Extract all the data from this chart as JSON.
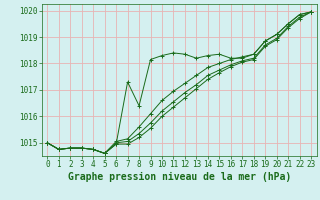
{
  "x": [
    0,
    1,
    2,
    3,
    4,
    5,
    6,
    7,
    8,
    9,
    10,
    11,
    12,
    13,
    14,
    15,
    16,
    17,
    18,
    19,
    20,
    21,
    22,
    23
  ],
  "line1": [
    1015.0,
    1014.75,
    1014.8,
    1014.8,
    1014.75,
    1014.6,
    1014.95,
    1017.3,
    1016.4,
    1018.15,
    1018.3,
    1018.4,
    1018.35,
    1018.2,
    1018.3,
    1018.35,
    1018.2,
    1018.2,
    1018.35,
    1018.85,
    1019.1,
    1019.5,
    1019.85,
    1019.95
  ],
  "line2": [
    1015.0,
    1014.75,
    1014.8,
    1014.8,
    1014.75,
    1014.6,
    1015.05,
    1015.15,
    1015.6,
    1016.1,
    1016.6,
    1016.95,
    1017.25,
    1017.55,
    1017.85,
    1018.0,
    1018.15,
    1018.25,
    1018.35,
    1018.85,
    1019.1,
    1019.5,
    1019.85,
    1019.95
  ],
  "line3": [
    1015.0,
    1014.75,
    1014.8,
    1014.8,
    1014.75,
    1014.6,
    1015.0,
    1015.05,
    1015.35,
    1015.75,
    1016.2,
    1016.55,
    1016.9,
    1017.2,
    1017.55,
    1017.75,
    1017.95,
    1018.1,
    1018.2,
    1018.7,
    1018.95,
    1019.4,
    1019.75,
    1019.95
  ],
  "line4": [
    1015.0,
    1014.75,
    1014.8,
    1014.8,
    1014.75,
    1014.6,
    1014.95,
    1014.95,
    1015.2,
    1015.55,
    1016.0,
    1016.35,
    1016.7,
    1017.05,
    1017.4,
    1017.65,
    1017.88,
    1018.05,
    1018.15,
    1018.65,
    1018.9,
    1019.35,
    1019.7,
    1019.95
  ],
  "ylim": [
    1014.5,
    1020.25
  ],
  "yticks": [
    1015,
    1016,
    1017,
    1018,
    1019,
    1020
  ],
  "xlim": [
    -0.5,
    23.5
  ],
  "xticks": [
    0,
    1,
    2,
    3,
    4,
    5,
    6,
    7,
    8,
    9,
    10,
    11,
    12,
    13,
    14,
    15,
    16,
    17,
    18,
    19,
    20,
    21,
    22,
    23
  ],
  "line_color": "#1a6b1a",
  "marker": "+",
  "markersize": 3,
  "linewidth": 0.7,
  "bg_color": "#d4f0f0",
  "grid_color": "#e8b4b4",
  "xlabel": "Graphe pression niveau de la mer (hPa)",
  "xlabel_color": "#1a6b1a",
  "xlabel_fontsize": 7,
  "tick_color": "#1a6b1a",
  "tick_fontsize": 5.5
}
